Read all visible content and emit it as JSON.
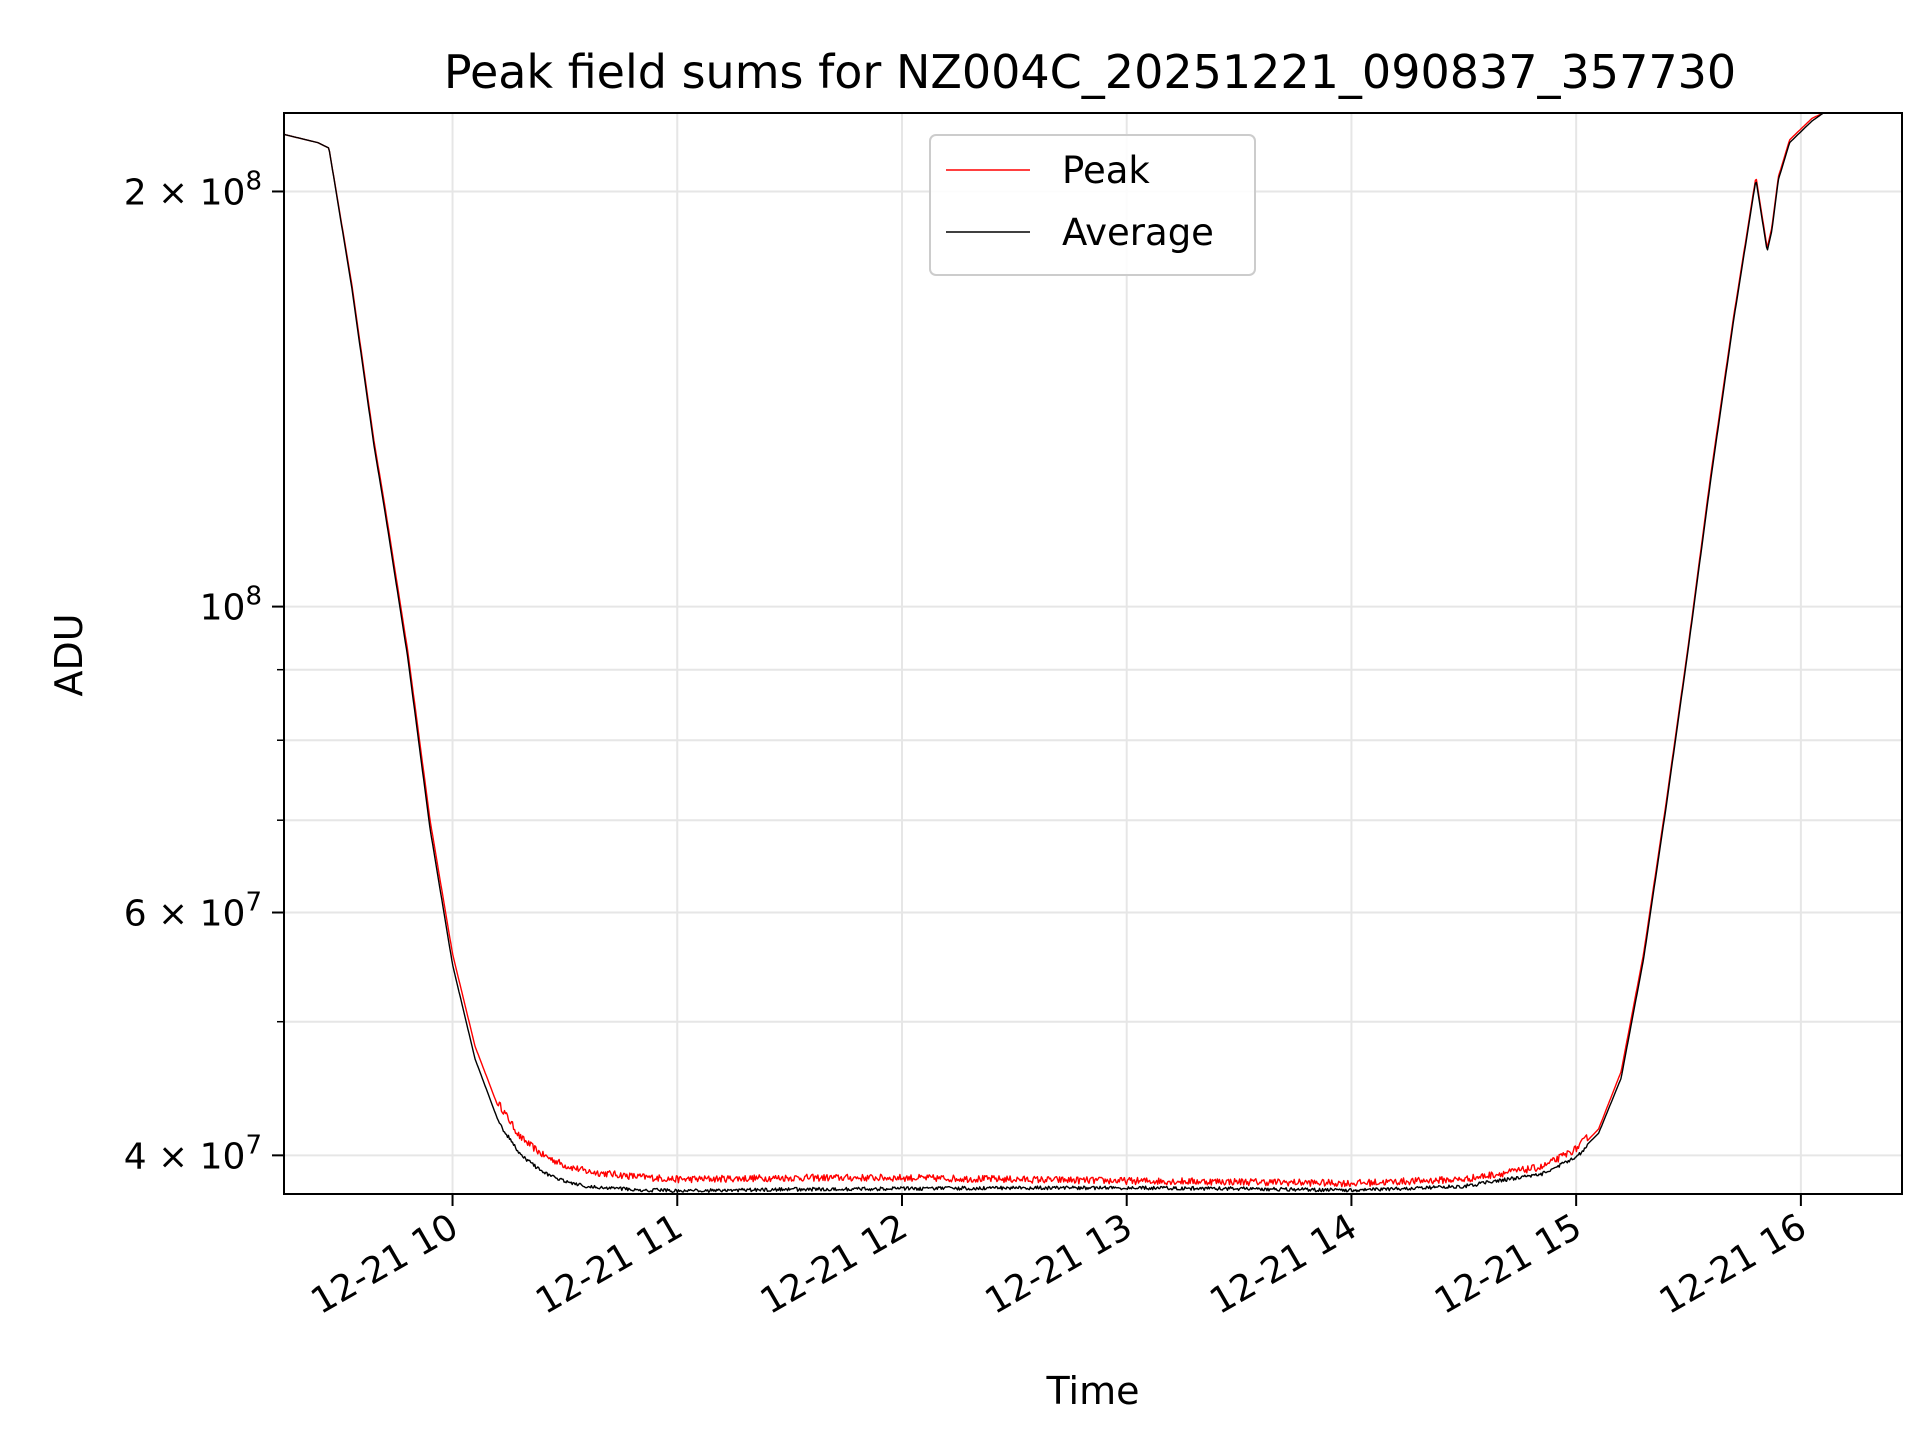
{
  "chart_data": {
    "type": "line",
    "title": "Peak field sums for NZ004C_20251221_090837_357730",
    "xlabel": "Time",
    "ylabel": "ADU",
    "yscale": "log",
    "ylim": [
      37500000,
      228000000
    ],
    "xlim_hours": [
      9.25,
      16.45
    ],
    "grid": true,
    "legend_position": "upper center",
    "x_tick_labels": [
      "12-21 10",
      "12-21 11",
      "12-21 12",
      "12-21 13",
      "12-21 14",
      "12-21 15",
      "12-21 16"
    ],
    "x_tick_hours": [
      10,
      11,
      12,
      13,
      14,
      15,
      16
    ],
    "y_tick_labels": [
      {
        "mantissa": "2",
        "exponent": "8",
        "value": 200000000
      },
      {
        "mantissa": "",
        "exponent": "8",
        "value": 100000000
      },
      {
        "mantissa": "6",
        "exponent": "7",
        "value": 60000000
      },
      {
        "mantissa": "4",
        "exponent": "7",
        "value": 40000000
      }
    ],
    "minor_y_values": [
      50000000,
      70000000,
      80000000,
      90000000
    ],
    "series": [
      {
        "name": "Peak",
        "color": "#ff0000",
        "noise_amplitude_fraction": 0.012,
        "hours": [
          9.25,
          9.4,
          9.45,
          9.55,
          9.65,
          9.7,
          9.8,
          9.9,
          10.0,
          10.1,
          10.2,
          10.3,
          10.4,
          10.5,
          10.6,
          10.8,
          11.0,
          11.5,
          12.0,
          12.5,
          13.0,
          13.5,
          14.0,
          14.5,
          14.85,
          15.0,
          15.1,
          15.2,
          15.3,
          15.4,
          15.5,
          15.6,
          15.7,
          15.8,
          15.85,
          15.87,
          15.9,
          15.95,
          16.0,
          16.05,
          16.1,
          16.45
        ],
        "values": [
          220000000,
          217000000,
          215000000,
          172000000,
          132000000,
          118000000,
          93000000,
          70000000,
          56000000,
          48000000,
          43500000,
          41000000,
          39800000,
          39100000,
          38700000,
          38400000,
          38200000,
          38300000,
          38300000,
          38200000,
          38100000,
          38050000,
          37950000,
          38200000,
          39000000,
          40200000,
          41800000,
          46000000,
          56000000,
          72000000,
          94000000,
          125000000,
          162000000,
          205000000,
          182000000,
          188000000,
          205000000,
          218000000,
          222000000,
          226000000,
          228000000,
          228000000
        ]
      },
      {
        "name": "Average",
        "color": "#000000",
        "noise_amplitude_fraction": 0.006,
        "hours": [
          9.25,
          9.4,
          9.45,
          9.55,
          9.65,
          9.7,
          9.8,
          9.9,
          10.0,
          10.1,
          10.2,
          10.3,
          10.4,
          10.5,
          10.6,
          10.8,
          11.0,
          11.5,
          12.0,
          12.5,
          13.0,
          13.5,
          14.0,
          14.5,
          14.85,
          15.0,
          15.1,
          15.2,
          15.3,
          15.4,
          15.5,
          15.6,
          15.7,
          15.8,
          15.85,
          15.87,
          15.9,
          15.95,
          16.0,
          16.05,
          16.1,
          16.45
        ],
        "values": [
          220000000,
          217000000,
          215000000,
          171000000,
          131000000,
          117000000,
          92000000,
          69000000,
          55000000,
          47000000,
          42500000,
          40200000,
          39000000,
          38400000,
          38100000,
          37900000,
          37800000,
          37900000,
          37950000,
          38000000,
          38000000,
          37950000,
          37850000,
          38100000,
          38900000,
          40000000,
          41500000,
          45500000,
          55500000,
          71500000,
          93500000,
          124000000,
          161000000,
          204000000,
          181000000,
          187000000,
          204000000,
          217000000,
          221000000,
          225000000,
          228000000,
          228000000
        ]
      }
    ]
  }
}
